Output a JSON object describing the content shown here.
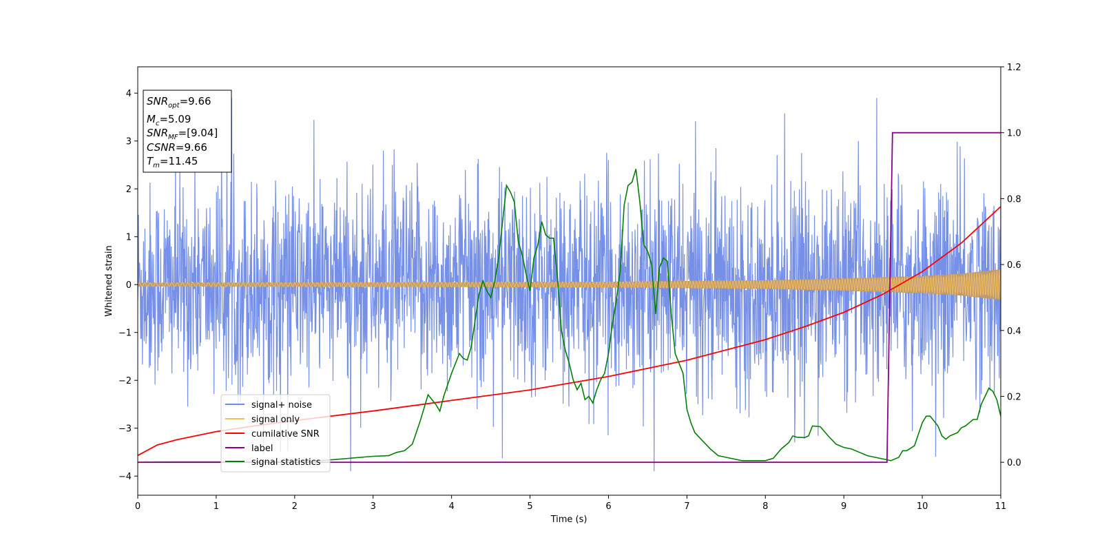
{
  "chart_data": {
    "type": "line",
    "xlabel": "Time (s)",
    "ylabel": "Whitened strain",
    "xlim": [
      0,
      11
    ],
    "ylim_left": [
      -4.4,
      4.55
    ],
    "ylim_right": [
      -0.1,
      1.2
    ],
    "x_ticks": [
      "0",
      "1",
      "2",
      "3",
      "4",
      "5",
      "6",
      "7",
      "8",
      "9",
      "10",
      "11"
    ],
    "y_left_ticks": [
      "−4",
      "−3",
      "−2",
      "−1",
      "0",
      "1",
      "2",
      "3",
      "4"
    ],
    "y_right_ticks": [
      "0.0",
      "0.2",
      "0.4",
      "0.6",
      "0.8",
      "1.0",
      "1.2"
    ],
    "y_left_tick_values": [
      -4,
      -3,
      -2,
      -1,
      0,
      1,
      2,
      3,
      4
    ],
    "y_right_tick_values": [
      0,
      0.2,
      0.4,
      0.6,
      0.8,
      1.0,
      1.2
    ],
    "legend_position": "lower-left",
    "stats": {
      "snr_opt": {
        "base": "SNR",
        "sub": "opt",
        "value": "=9.66"
      },
      "mc": {
        "base": "M",
        "sub": "c",
        "value": "=5.09"
      },
      "snr_mf": {
        "base": "SNR",
        "sub": "MF",
        "value": "=[9.04]"
      },
      "csnr": {
        "base": "CSNR",
        "sub": "",
        "value": "=9.66"
      },
      "tm": {
        "base": "T",
        "sub": "m",
        "value": "=11.45"
      }
    },
    "series": [
      {
        "name": "signal+ noise",
        "color": "#6f8ae6",
        "axis": "left",
        "description_values": "dense noise band spanning approx -2.3 to 2.3 with spikes to about ±3.9",
        "band": [
          -2.3,
          2.3
        ]
      },
      {
        "name": "signal only",
        "color": "#f5bf5a",
        "axis": "left",
        "envelope_x": [
          0,
          2,
          4,
          6,
          8,
          9,
          10,
          10.5,
          11
        ],
        "envelope_y": [
          0.04,
          0.045,
          0.05,
          0.06,
          0.09,
          0.13,
          0.18,
          0.23,
          0.32
        ]
      },
      {
        "name": "cumilative SNR",
        "color": "#ff0000",
        "axis": "left",
        "x": [
          0,
          0.25,
          0.5,
          1,
          1.5,
          2,
          3,
          4,
          5,
          6,
          7,
          8,
          8.5,
          9,
          9.5,
          10,
          10.5,
          11
        ],
        "y": [
          -3.57,
          -3.35,
          -3.24,
          -3.07,
          -2.95,
          -2.84,
          -2.64,
          -2.42,
          -2.2,
          -1.92,
          -1.58,
          -1.15,
          -0.88,
          -0.58,
          -0.2,
          0.27,
          0.87,
          1.63
        ]
      },
      {
        "name": "label",
        "color": "#8b008b",
        "axis": "right",
        "x": [
          0,
          9.55,
          9.62,
          11
        ],
        "y": [
          0,
          0,
          1,
          1
        ]
      },
      {
        "name": "signal statistics",
        "color": "#008000",
        "axis": "right",
        "x": [
          0,
          0.5,
          1,
          1.5,
          2,
          2.5,
          3,
          3.2,
          3.3,
          3.4,
          3.5,
          3.6,
          3.7,
          3.8,
          3.85,
          3.9,
          4.0,
          4.1,
          4.15,
          4.2,
          4.25,
          4.3,
          4.35,
          4.4,
          4.45,
          4.5,
          4.55,
          4.6,
          4.65,
          4.7,
          4.75,
          4.8,
          4.85,
          4.9,
          4.95,
          5.0,
          5.05,
          5.1,
          5.15,
          5.2,
          5.25,
          5.3,
          5.35,
          5.4,
          5.45,
          5.5,
          5.55,
          5.6,
          5.65,
          5.7,
          5.75,
          5.8,
          5.85,
          5.9,
          5.95,
          6.0,
          6.05,
          6.1,
          6.15,
          6.2,
          6.25,
          6.3,
          6.35,
          6.4,
          6.45,
          6.5,
          6.55,
          6.6,
          6.65,
          6.7,
          6.75,
          6.8,
          6.85,
          6.9,
          6.95,
          7.0,
          7.05,
          7.1,
          7.2,
          7.3,
          7.4,
          7.5,
          7.6,
          7.7,
          7.8,
          7.9,
          8.0,
          8.1,
          8.2,
          8.3,
          8.35,
          8.4,
          8.5,
          8.55,
          8.6,
          8.7,
          8.8,
          8.9,
          9.0,
          9.1,
          9.2,
          9.3,
          9.4,
          9.5,
          9.6,
          9.7,
          9.75,
          9.8,
          9.9,
          9.95,
          10.0,
          10.05,
          10.1,
          10.2,
          10.25,
          10.3,
          10.35,
          10.4,
          10.45,
          10.5,
          10.55,
          10.6,
          10.65,
          10.7,
          10.75,
          10.8,
          10.85,
          10.9,
          10.95,
          11.0
        ],
        "y": [
          0,
          0.001,
          0.001,
          0.0,
          0.0,
          0.008,
          0.018,
          0.02,
          0.03,
          0.035,
          0.055,
          0.125,
          0.205,
          0.175,
          0.155,
          0.2,
          0.27,
          0.33,
          0.315,
          0.31,
          0.35,
          0.43,
          0.51,
          0.55,
          0.52,
          0.5,
          0.55,
          0.62,
          0.73,
          0.84,
          0.82,
          0.79,
          0.67,
          0.63,
          0.57,
          0.52,
          0.62,
          0.66,
          0.73,
          0.69,
          0.68,
          0.68,
          0.56,
          0.4,
          0.34,
          0.3,
          0.25,
          0.22,
          0.24,
          0.19,
          0.2,
          0.18,
          0.22,
          0.25,
          0.27,
          0.33,
          0.42,
          0.49,
          0.58,
          0.78,
          0.84,
          0.85,
          0.89,
          0.79,
          0.66,
          0.64,
          0.6,
          0.45,
          0.59,
          0.62,
          0.61,
          0.45,
          0.33,
          0.3,
          0.27,
          0.16,
          0.12,
          0.09,
          0.065,
          0.04,
          0.02,
          0.015,
          0.01,
          0.005,
          0.005,
          0.005,
          0.005,
          0.012,
          0.04,
          0.06,
          0.08,
          0.076,
          0.075,
          0.08,
          0.11,
          0.108,
          0.08,
          0.055,
          0.045,
          0.04,
          0.03,
          0.02,
          0.015,
          0.01,
          0.005,
          0.015,
          0.035,
          0.035,
          0.05,
          0.085,
          0.12,
          0.14,
          0.14,
          0.11,
          0.08,
          0.07,
          0.08,
          0.085,
          0.09,
          0.105,
          0.11,
          0.12,
          0.13,
          0.13,
          0.175,
          0.2,
          0.225,
          0.215,
          0.19,
          0.14
        ]
      }
    ]
  }
}
